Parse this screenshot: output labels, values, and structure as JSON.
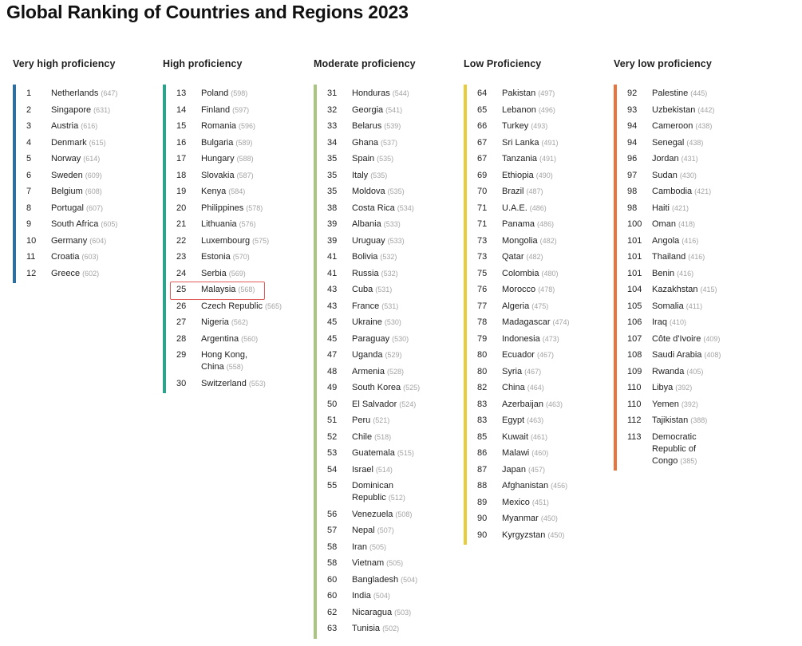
{
  "title": "Global Ranking of Countries and Regions 2023",
  "columns": [
    {
      "heading": "Very high proficiency",
      "color": "#2f6fa0",
      "rows": [
        {
          "rank": "1",
          "country": "Netherlands",
          "score": "(647)"
        },
        {
          "rank": "2",
          "country": "Singapore",
          "score": "(631)"
        },
        {
          "rank": "3",
          "country": "Austria",
          "score": "(616)"
        },
        {
          "rank": "4",
          "country": "Denmark",
          "score": "(615)"
        },
        {
          "rank": "5",
          "country": "Norway",
          "score": "(614)"
        },
        {
          "rank": "6",
          "country": "Sweden",
          "score": "(609)"
        },
        {
          "rank": "7",
          "country": "Belgium",
          "score": "(608)"
        },
        {
          "rank": "8",
          "country": "Portugal",
          "score": "(607)"
        },
        {
          "rank": "9",
          "country": "South Africa",
          "score": "(605)"
        },
        {
          "rank": "10",
          "country": "Germany",
          "score": "(604)"
        },
        {
          "rank": "11",
          "country": "Croatia",
          "score": "(603)"
        },
        {
          "rank": "12",
          "country": "Greece",
          "score": "(602)"
        }
      ]
    },
    {
      "heading": "High proficiency",
      "color": "#2ea38c",
      "rows": [
        {
          "rank": "13",
          "country": "Poland",
          "score": "(598)"
        },
        {
          "rank": "14",
          "country": "Finland",
          "score": "(597)"
        },
        {
          "rank": "15",
          "country": "Romania",
          "score": "(596)"
        },
        {
          "rank": "16",
          "country": "Bulgaria",
          "score": "(589)"
        },
        {
          "rank": "17",
          "country": "Hungary",
          "score": "(588)"
        },
        {
          "rank": "18",
          "country": "Slovakia",
          "score": "(587)"
        },
        {
          "rank": "19",
          "country": "Kenya",
          "score": "(584)"
        },
        {
          "rank": "20",
          "country": "Philippines",
          "score": "(578)"
        },
        {
          "rank": "21",
          "country": "Lithuania",
          "score": "(576)"
        },
        {
          "rank": "22",
          "country": "Luxembourg",
          "score": "(575)"
        },
        {
          "rank": "23",
          "country": "Estonia",
          "score": "(570)"
        },
        {
          "rank": "24",
          "country": "Serbia",
          "score": "(569)"
        },
        {
          "rank": "25",
          "country": "Malaysia",
          "score": "(568)",
          "highlight": true
        },
        {
          "rank": "26",
          "country": "Czech Republic",
          "score": "(565)"
        },
        {
          "rank": "27",
          "country": "Nigeria",
          "score": "(562)"
        },
        {
          "rank": "28",
          "country": "Argentina",
          "score": "(560)"
        },
        {
          "rank": "29",
          "country": "Hong Kong, China",
          "score": "(558)",
          "wrap": true
        },
        {
          "rank": "30",
          "country": "Switzerland",
          "score": "(553)"
        }
      ]
    },
    {
      "heading": "Moderate proficiency",
      "color": "#a9c57f",
      "rows": [
        {
          "rank": "31",
          "country": "Honduras",
          "score": "(544)"
        },
        {
          "rank": "32",
          "country": "Georgia",
          "score": "(541)"
        },
        {
          "rank": "33",
          "country": "Belarus",
          "score": "(539)"
        },
        {
          "rank": "34",
          "country": "Ghana",
          "score": "(537)"
        },
        {
          "rank": "35",
          "country": "Spain",
          "score": "(535)"
        },
        {
          "rank": "35",
          "country": "Italy",
          "score": "(535)"
        },
        {
          "rank": "35",
          "country": "Moldova",
          "score": "(535)"
        },
        {
          "rank": "38",
          "country": "Costa Rica",
          "score": "(534)"
        },
        {
          "rank": "39",
          "country": "Albania",
          "score": "(533)"
        },
        {
          "rank": "39",
          "country": "Uruguay",
          "score": "(533)"
        },
        {
          "rank": "41",
          "country": "Bolivia",
          "score": "(532)"
        },
        {
          "rank": "41",
          "country": "Russia",
          "score": "(532)"
        },
        {
          "rank": "43",
          "country": "Cuba",
          "score": "(531)"
        },
        {
          "rank": "43",
          "country": "France",
          "score": "(531)"
        },
        {
          "rank": "45",
          "country": "Ukraine",
          "score": "(530)"
        },
        {
          "rank": "45",
          "country": "Paraguay",
          "score": "(530)"
        },
        {
          "rank": "47",
          "country": "Uganda",
          "score": "(529)"
        },
        {
          "rank": "48",
          "country": "Armenia",
          "score": "(528)"
        },
        {
          "rank": "49",
          "country": "South Korea",
          "score": "(525)"
        },
        {
          "rank": "50",
          "country": "El Salvador",
          "score": "(524)"
        },
        {
          "rank": "51",
          "country": "Peru",
          "score": "(521)"
        },
        {
          "rank": "52",
          "country": "Chile",
          "score": "(518)"
        },
        {
          "rank": "53",
          "country": "Guatemala",
          "score": "(515)"
        },
        {
          "rank": "54",
          "country": "Israel",
          "score": "(514)"
        },
        {
          "rank": "55",
          "country": "Dominican Republic",
          "score": "(512)",
          "wrap": true
        },
        {
          "rank": "56",
          "country": "Venezuela",
          "score": "(508)"
        },
        {
          "rank": "57",
          "country": "Nepal",
          "score": "(507)"
        },
        {
          "rank": "58",
          "country": "Iran",
          "score": "(505)"
        },
        {
          "rank": "58",
          "country": "Vietnam",
          "score": "(505)"
        },
        {
          "rank": "60",
          "country": "Bangladesh",
          "score": "(504)"
        },
        {
          "rank": "60",
          "country": "India",
          "score": "(504)"
        },
        {
          "rank": "62",
          "country": "Nicaragua",
          "score": "(503)"
        },
        {
          "rank": "63",
          "country": "Tunisia",
          "score": "(502)"
        }
      ]
    },
    {
      "heading": "Low Proficiency",
      "color": "#e8cc3c",
      "rows": [
        {
          "rank": "64",
          "country": "Pakistan",
          "score": "(497)"
        },
        {
          "rank": "65",
          "country": "Lebanon",
          "score": "(496)"
        },
        {
          "rank": "66",
          "country": "Turkey",
          "score": "(493)"
        },
        {
          "rank": "67",
          "country": "Sri Lanka",
          "score": "(491)"
        },
        {
          "rank": "67",
          "country": "Tanzania",
          "score": "(491)"
        },
        {
          "rank": "69",
          "country": "Ethiopia",
          "score": "(490)"
        },
        {
          "rank": "70",
          "country": "Brazil",
          "score": "(487)"
        },
        {
          "rank": "71",
          "country": "U.A.E.",
          "score": "(486)"
        },
        {
          "rank": "71",
          "country": "Panama",
          "score": "(486)"
        },
        {
          "rank": "73",
          "country": "Mongolia",
          "score": "(482)"
        },
        {
          "rank": "73",
          "country": "Qatar",
          "score": "(482)"
        },
        {
          "rank": "75",
          "country": "Colombia",
          "score": "(480)"
        },
        {
          "rank": "76",
          "country": "Morocco",
          "score": "(478)"
        },
        {
          "rank": "77",
          "country": "Algeria",
          "score": "(475)"
        },
        {
          "rank": "78",
          "country": "Madagascar",
          "score": "(474)"
        },
        {
          "rank": "79",
          "country": "Indonesia",
          "score": "(473)"
        },
        {
          "rank": "80",
          "country": "Ecuador",
          "score": "(467)"
        },
        {
          "rank": "80",
          "country": "Syria",
          "score": "(467)"
        },
        {
          "rank": "82",
          "country": "China",
          "score": "(464)"
        },
        {
          "rank": "83",
          "country": "Azerbaijan",
          "score": "(463)"
        },
        {
          "rank": "83",
          "country": "Egypt",
          "score": "(463)"
        },
        {
          "rank": "85",
          "country": "Kuwait",
          "score": "(461)"
        },
        {
          "rank": "86",
          "country": "Malawi",
          "score": "(460)"
        },
        {
          "rank": "87",
          "country": "Japan",
          "score": "(457)"
        },
        {
          "rank": "88",
          "country": "Afghanistan",
          "score": "(456)"
        },
        {
          "rank": "89",
          "country": "Mexico",
          "score": "(451)"
        },
        {
          "rank": "90",
          "country": "Myanmar",
          "score": "(450)"
        },
        {
          "rank": "90",
          "country": "Kyrgyzstan",
          "score": "(450)"
        }
      ]
    },
    {
      "heading": "Very low proficiency",
      "color": "#e8733c",
      "rows": [
        {
          "rank": "92",
          "country": "Palestine",
          "score": "(445)"
        },
        {
          "rank": "93",
          "country": "Uzbekistan",
          "score": "(442)"
        },
        {
          "rank": "94",
          "country": "Cameroon",
          "score": "(438)"
        },
        {
          "rank": "94",
          "country": "Senegal",
          "score": "(438)"
        },
        {
          "rank": "96",
          "country": "Jordan",
          "score": "(431)"
        },
        {
          "rank": "97",
          "country": "Sudan",
          "score": "(430)"
        },
        {
          "rank": "98",
          "country": "Cambodia",
          "score": "(421)"
        },
        {
          "rank": "98",
          "country": "Haiti",
          "score": "(421)"
        },
        {
          "rank": "100",
          "country": "Oman",
          "score": "(418)"
        },
        {
          "rank": "101",
          "country": "Angola",
          "score": "(416)"
        },
        {
          "rank": "101",
          "country": "Thailand",
          "score": "(416)"
        },
        {
          "rank": "101",
          "country": "Benin",
          "score": "(416)"
        },
        {
          "rank": "104",
          "country": "Kazakhstan",
          "score": "(415)"
        },
        {
          "rank": "105",
          "country": "Somalia",
          "score": "(411)"
        },
        {
          "rank": "106",
          "country": "Iraq",
          "score": "(410)"
        },
        {
          "rank": "107",
          "country": "Côte d'Ivoire",
          "score": "(409)"
        },
        {
          "rank": "108",
          "country": "Saudi Arabia",
          "score": "(408)"
        },
        {
          "rank": "109",
          "country": "Rwanda",
          "score": "(405)"
        },
        {
          "rank": "110",
          "country": "Libya",
          "score": "(392)"
        },
        {
          "rank": "110",
          "country": "Yemen",
          "score": "(392)"
        },
        {
          "rank": "112",
          "country": "Tajikistan",
          "score": "(388)"
        },
        {
          "rank": "113",
          "country": "Democratic Republic of Congo",
          "score": "(385)",
          "wrap": true
        }
      ]
    }
  ]
}
